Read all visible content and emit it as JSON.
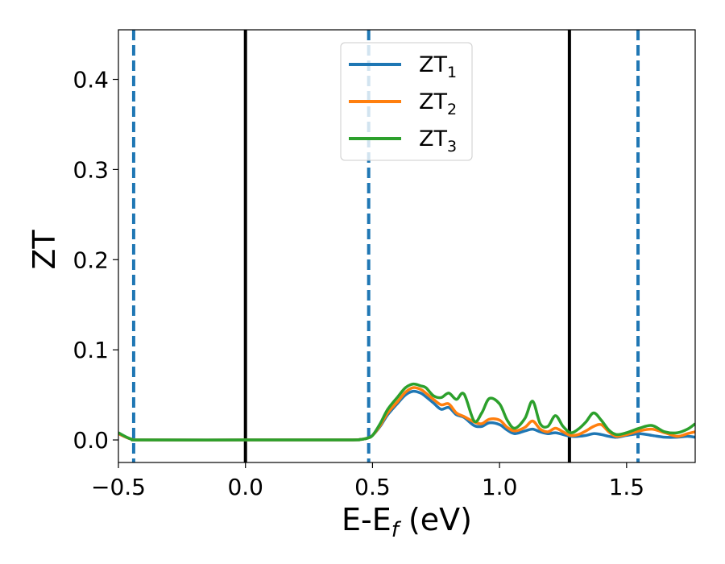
{
  "chart_data": {
    "type": "line",
    "xlabel": "E-E",
    "xlabel_sub": "f",
    "xlabel_unit": " (eV)",
    "ylabel": "ZT",
    "xlim": [
      -0.5,
      1.77
    ],
    "ylim": [
      -0.025,
      0.455
    ],
    "xticks": [
      -0.5,
      0.0,
      0.5,
      1.0,
      1.5
    ],
    "xtick_labels": [
      "−0.5",
      "0.0",
      "0.5",
      "1.0",
      "1.5"
    ],
    "yticks": [
      0.0,
      0.1,
      0.2,
      0.3,
      0.4
    ],
    "ytick_labels": [
      "0.0",
      "0.1",
      "0.2",
      "0.3",
      "0.4"
    ],
    "grid": false,
    "legend_position": "top-center",
    "vlines": [
      {
        "x": -0.44,
        "style": "dashed",
        "color": "#1f77b4"
      },
      {
        "x": 0.0,
        "style": "solid",
        "color": "#000000"
      },
      {
        "x": 0.485,
        "style": "dashed",
        "color": "#1f77b4"
      },
      {
        "x": 1.275,
        "style": "solid",
        "color": "#000000"
      },
      {
        "x": 1.545,
        "style": "dashed",
        "color": "#1f77b4"
      }
    ],
    "x": [
      -0.5,
      -0.45,
      -0.4,
      0.0,
      0.4,
      0.45,
      0.48,
      0.5,
      0.53,
      0.56,
      0.6,
      0.63,
      0.66,
      0.69,
      0.71,
      0.74,
      0.77,
      0.8,
      0.83,
      0.86,
      0.9,
      0.93,
      0.96,
      1.0,
      1.03,
      1.06,
      1.1,
      1.13,
      1.16,
      1.19,
      1.22,
      1.25,
      1.28,
      1.31,
      1.34,
      1.37,
      1.4,
      1.43,
      1.46,
      1.5,
      1.55,
      1.6,
      1.65,
      1.7,
      1.74,
      1.77
    ],
    "series": [
      {
        "name": "ZT",
        "name_sub": "1",
        "color": "#1f77b4",
        "values": [
          0.007,
          0.001,
          0.0,
          0.0,
          0.0,
          0.0005,
          0.002,
          0.005,
          0.015,
          0.028,
          0.041,
          0.05,
          0.054,
          0.052,
          0.048,
          0.041,
          0.034,
          0.036,
          0.028,
          0.025,
          0.016,
          0.015,
          0.019,
          0.017,
          0.011,
          0.007,
          0.01,
          0.012,
          0.009,
          0.007,
          0.008,
          0.006,
          0.004,
          0.004,
          0.005,
          0.007,
          0.006,
          0.004,
          0.003,
          0.005,
          0.007,
          0.005,
          0.003,
          0.003,
          0.004,
          0.003
        ]
      },
      {
        "name": "ZT",
        "name_sub": "2",
        "color": "#ff7f0e",
        "values": [
          0.007,
          0.001,
          0.0,
          0.0,
          0.0,
          0.0005,
          0.002,
          0.005,
          0.016,
          0.03,
          0.043,
          0.053,
          0.058,
          0.056,
          0.052,
          0.045,
          0.039,
          0.04,
          0.03,
          0.026,
          0.02,
          0.018,
          0.023,
          0.022,
          0.014,
          0.01,
          0.014,
          0.021,
          0.012,
          0.009,
          0.013,
          0.009,
          0.005,
          0.006,
          0.01,
          0.015,
          0.017,
          0.009,
          0.004,
          0.006,
          0.01,
          0.012,
          0.008,
          0.004,
          0.007,
          0.009
        ]
      },
      {
        "name": "ZT",
        "name_sub": "3",
        "color": "#2ca02c",
        "values": [
          0.008,
          0.001,
          0.0,
          0.0,
          0.0,
          0.0005,
          0.002,
          0.005,
          0.018,
          0.034,
          0.048,
          0.058,
          0.062,
          0.06,
          0.058,
          0.049,
          0.047,
          0.052,
          0.045,
          0.051,
          0.021,
          0.03,
          0.046,
          0.04,
          0.022,
          0.013,
          0.024,
          0.043,
          0.018,
          0.015,
          0.027,
          0.015,
          0.008,
          0.012,
          0.02,
          0.03,
          0.022,
          0.011,
          0.006,
          0.008,
          0.013,
          0.016,
          0.009,
          0.008,
          0.012,
          0.018
        ]
      }
    ]
  }
}
